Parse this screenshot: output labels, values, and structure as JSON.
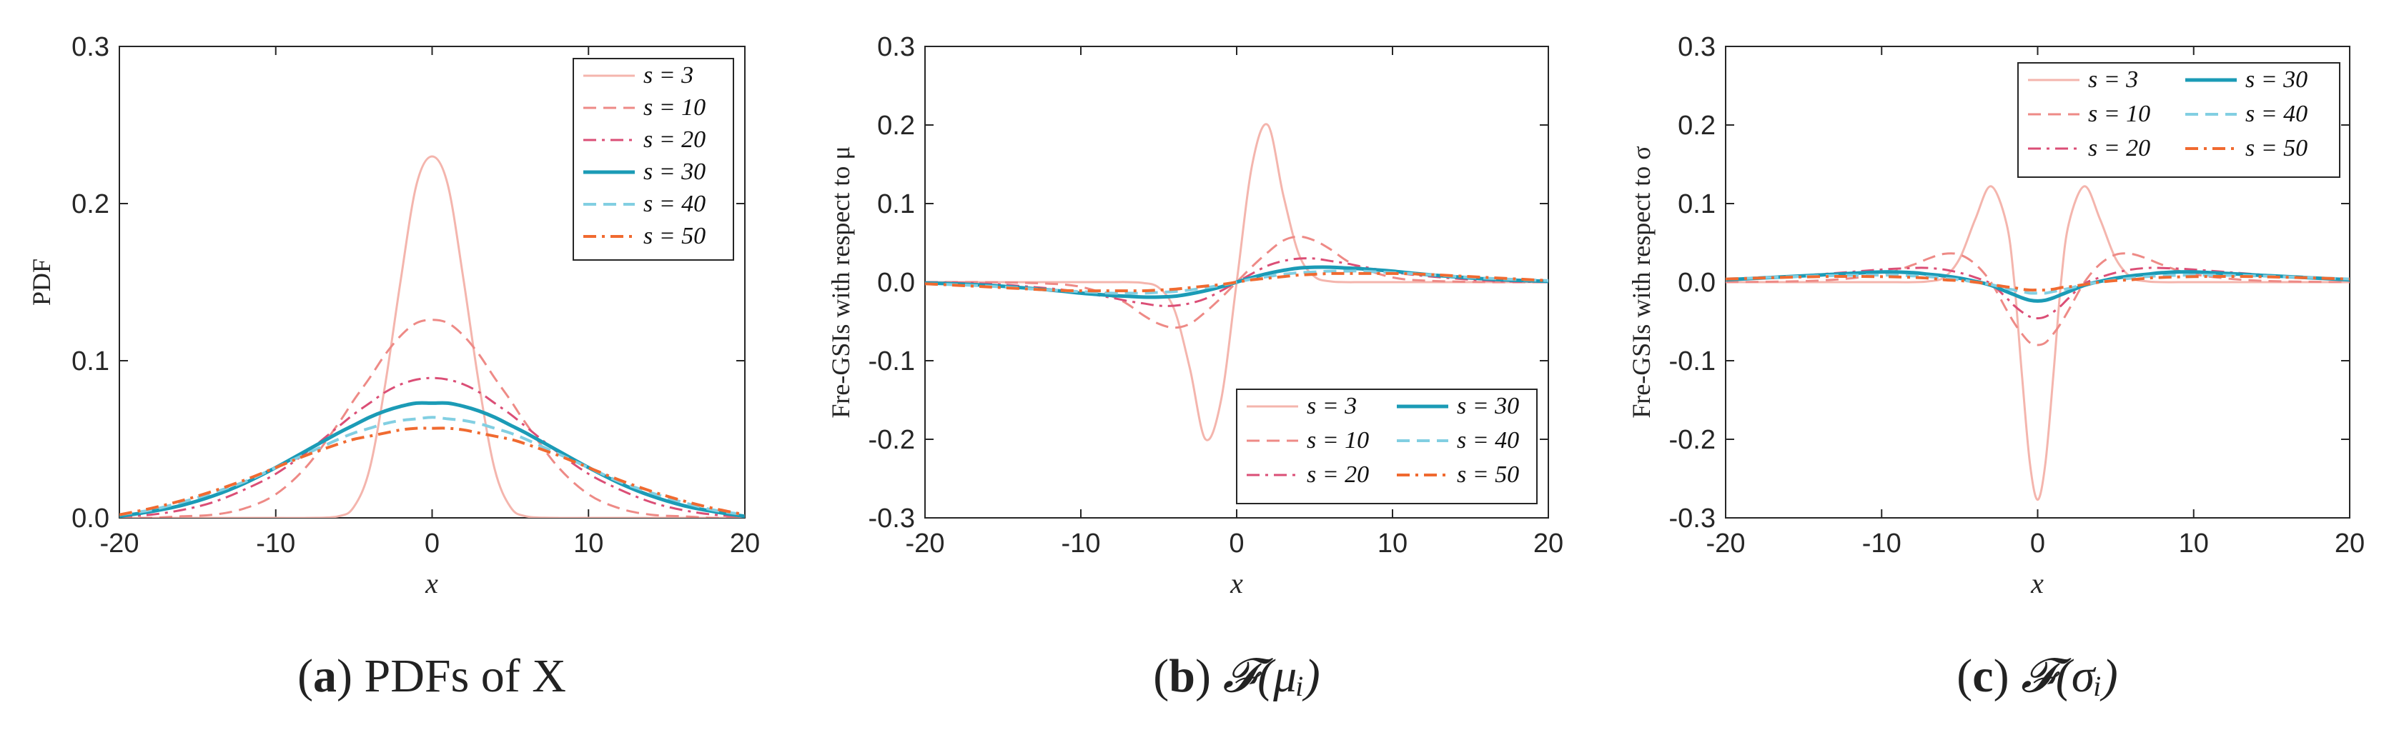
{
  "chart_data": [
    {
      "type": "line",
      "panel_label": "a",
      "caption": "PDFs of X",
      "title": "",
      "xlabel": "x",
      "ylabel": "PDF",
      "xlim": [
        -20,
        20
      ],
      "ylim": [
        0,
        0.3
      ],
      "xticks": [
        "-20",
        "-10",
        "0",
        "10",
        "20"
      ],
      "yticks": [
        "0.0",
        "0.1",
        "0.2",
        "0.3"
      ],
      "legend_position": "top-right",
      "legend_columns": 1,
      "grid": false,
      "x": [
        -20,
        -18,
        -16,
        -14,
        -12,
        -10,
        -8,
        -6,
        -5,
        -4,
        -3,
        -2,
        -1,
        0,
        1,
        2,
        3,
        4,
        5,
        6,
        8,
        10,
        12,
        14,
        16,
        18,
        20
      ],
      "series": [
        {
          "name": "s = 3",
          "values": [
            0,
            0,
            0,
            0,
            0,
            0,
            0,
            0.001,
            0.007,
            0.031,
            0.085,
            0.152,
            0.212,
            0.23,
            0.212,
            0.152,
            0.085,
            0.031,
            0.007,
            0.001,
            0,
            0,
            0,
            0,
            0,
            0,
            0
          ]
        },
        {
          "name": "s = 10",
          "values": [
            0,
            0,
            0.001,
            0.002,
            0.006,
            0.015,
            0.033,
            0.06,
            0.075,
            0.089,
            0.104,
            0.116,
            0.124,
            0.126,
            0.124,
            0.116,
            0.104,
            0.089,
            0.075,
            0.06,
            0.033,
            0.015,
            0.006,
            0.002,
            0.001,
            0,
            0
          ]
        },
        {
          "name": "s = 20",
          "values": [
            0.001,
            0.002,
            0.005,
            0.01,
            0.018,
            0.028,
            0.042,
            0.058,
            0.066,
            0.073,
            0.08,
            0.085,
            0.088,
            0.089,
            0.088,
            0.085,
            0.08,
            0.073,
            0.066,
            0.058,
            0.042,
            0.028,
            0.018,
            0.01,
            0.005,
            0.002,
            0.001
          ]
        },
        {
          "name": "s = 30",
          "values": [
            0.001,
            0.004,
            0.008,
            0.014,
            0.022,
            0.032,
            0.043,
            0.054,
            0.059,
            0.064,
            0.068,
            0.071,
            0.073,
            0.073,
            0.073,
            0.071,
            0.068,
            0.064,
            0.059,
            0.054,
            0.043,
            0.032,
            0.022,
            0.014,
            0.008,
            0.004,
            0.001
          ]
        },
        {
          "name": "s = 40",
          "values": [
            0.002,
            0.005,
            0.01,
            0.016,
            0.023,
            0.032,
            0.041,
            0.05,
            0.054,
            0.057,
            0.06,
            0.062,
            0.063,
            0.064,
            0.063,
            0.062,
            0.06,
            0.057,
            0.054,
            0.05,
            0.041,
            0.032,
            0.023,
            0.016,
            0.01,
            0.005,
            0.002
          ]
        },
        {
          "name": "s = 50",
          "values": [
            0.002,
            0.006,
            0.011,
            0.017,
            0.024,
            0.032,
            0.04,
            0.047,
            0.05,
            0.052,
            0.054,
            0.056,
            0.057,
            0.057,
            0.057,
            0.056,
            0.054,
            0.052,
            0.05,
            0.047,
            0.04,
            0.032,
            0.024,
            0.017,
            0.011,
            0.006,
            0.002
          ]
        }
      ]
    },
    {
      "type": "line",
      "panel_label": "b",
      "caption": "𝓕(μᵢ)",
      "title": "",
      "xlabel": "x",
      "ylabel": "Fre-GSIs with respect to μ",
      "xlim": [
        -20,
        20
      ],
      "ylim": [
        -0.3,
        0.3
      ],
      "xticks": [
        "-20",
        "-10",
        "0",
        "10",
        "20"
      ],
      "yticks": [
        "-0.3",
        "-0.2",
        "-0.1",
        "0.0",
        "0.1",
        "0.2",
        "0.3"
      ],
      "legend_position": "bottom-right",
      "legend_columns": 2,
      "grid": false,
      "x": [
        -20,
        -16,
        -12,
        -10,
        -8,
        -7,
        -6,
        -5,
        -4,
        -3,
        -2,
        -1,
        0,
        1,
        2,
        3,
        4,
        5,
        6,
        7,
        8,
        10,
        12,
        16,
        20
      ],
      "series": [
        {
          "name": "s = 3",
          "values": [
            0,
            0,
            0,
            0,
            0,
            0,
            -0.001,
            -0.007,
            -0.035,
            -0.11,
            -0.2,
            -0.15,
            0,
            0.15,
            0.2,
            0.11,
            0.035,
            0.007,
            0.001,
            0,
            0,
            0,
            0,
            0,
            0
          ]
        },
        {
          "name": "s = 10",
          "values": [
            0,
            0,
            -0.002,
            -0.006,
            -0.018,
            -0.028,
            -0.042,
            -0.053,
            -0.058,
            -0.053,
            -0.038,
            -0.02,
            0,
            0.02,
            0.038,
            0.053,
            0.058,
            0.053,
            0.042,
            0.028,
            0.018,
            0.006,
            0.002,
            0,
            0
          ]
        },
        {
          "name": "s = 20",
          "values": [
            0,
            -0.002,
            -0.008,
            -0.013,
            -0.02,
            -0.024,
            -0.027,
            -0.03,
            -0.03,
            -0.027,
            -0.021,
            -0.011,
            0,
            0.011,
            0.021,
            0.027,
            0.03,
            0.03,
            0.027,
            0.024,
            0.02,
            0.013,
            0.008,
            0.002,
            0
          ]
        },
        {
          "name": "s = 30",
          "values": [
            -0.001,
            -0.004,
            -0.01,
            -0.014,
            -0.017,
            -0.018,
            -0.019,
            -0.019,
            -0.018,
            -0.015,
            -0.011,
            -0.006,
            0,
            0.006,
            0.011,
            0.015,
            0.018,
            0.019,
            0.019,
            0.018,
            0.017,
            0.014,
            0.01,
            0.004,
            0.001
          ]
        },
        {
          "name": "s = 40",
          "values": [
            -0.002,
            -0.005,
            -0.01,
            -0.012,
            -0.014,
            -0.014,
            -0.014,
            -0.013,
            -0.012,
            -0.01,
            -0.007,
            -0.004,
            0,
            0.004,
            0.007,
            0.01,
            0.012,
            0.013,
            0.014,
            0.014,
            0.014,
            0.012,
            0.01,
            0.005,
            0.002
          ]
        },
        {
          "name": "s = 50",
          "values": [
            -0.002,
            -0.006,
            -0.01,
            -0.011,
            -0.011,
            -0.011,
            -0.011,
            -0.01,
            -0.009,
            -0.007,
            -0.005,
            -0.003,
            0,
            0.003,
            0.005,
            0.007,
            0.009,
            0.01,
            0.011,
            0.011,
            0.011,
            0.011,
            0.01,
            0.006,
            0.002
          ]
        }
      ]
    },
    {
      "type": "line",
      "panel_label": "c",
      "caption": "𝓕(σᵢ)",
      "title": "",
      "xlabel": "x",
      "ylabel": "Fre-GSIs with respect to σ",
      "xlim": [
        -20,
        20
      ],
      "ylim": [
        -0.3,
        0.3
      ],
      "xticks": [
        "-20",
        "-10",
        "0",
        "10",
        "20"
      ],
      "yticks": [
        "-0.3",
        "-0.2",
        "-0.1",
        "0.0",
        "0.1",
        "0.2",
        "0.3"
      ],
      "legend_position": "top-right",
      "legend_columns": 2,
      "grid": false,
      "x": [
        -20,
        -14,
        -10,
        -8,
        -7,
        -6,
        -5,
        -4,
        -3,
        -2,
        -1.5,
        -1,
        -0.5,
        0,
        0.5,
        1,
        1.5,
        2,
        3,
        4,
        5,
        6,
        7,
        8,
        10,
        14,
        20
      ],
      "series": [
        {
          "name": "s = 3",
          "values": [
            0,
            0,
            0,
            0,
            0.001,
            0.006,
            0.03,
            0.08,
            0.122,
            0.075,
            0.0,
            -0.12,
            -0.23,
            -0.277,
            -0.23,
            -0.12,
            0.0,
            0.075,
            0.122,
            0.08,
            0.03,
            0.006,
            0.001,
            0,
            0,
            0,
            0
          ]
        },
        {
          "name": "s = 10",
          "values": [
            0,
            0.002,
            0.01,
            0.022,
            0.03,
            0.036,
            0.035,
            0.023,
            0.0,
            -0.035,
            -0.052,
            -0.066,
            -0.077,
            -0.08,
            -0.077,
            -0.066,
            -0.052,
            -0.035,
            0.0,
            0.023,
            0.035,
            0.036,
            0.03,
            0.022,
            0.01,
            0.002,
            0
          ]
        },
        {
          "name": "s = 20",
          "values": [
            0.002,
            0.01,
            0.016,
            0.018,
            0.018,
            0.016,
            0.012,
            0.006,
            -0.002,
            -0.02,
            -0.03,
            -0.038,
            -0.044,
            -0.046,
            -0.044,
            -0.038,
            -0.03,
            -0.02,
            -0.002,
            0.006,
            0.012,
            0.016,
            0.018,
            0.018,
            0.016,
            0.01,
            0.002
          ]
        },
        {
          "name": "s = 30",
          "values": [
            0.003,
            0.009,
            0.013,
            0.012,
            0.01,
            0.008,
            0.005,
            0.001,
            -0.004,
            -0.012,
            -0.016,
            -0.02,
            -0.023,
            -0.024,
            -0.023,
            -0.02,
            -0.016,
            -0.012,
            -0.004,
            0.001,
            0.005,
            0.008,
            0.01,
            0.012,
            0.013,
            0.009,
            0.003
          ]
        },
        {
          "name": "s = 40",
          "values": [
            0.004,
            0.008,
            0.009,
            0.008,
            0.007,
            0.005,
            0.003,
            0.0,
            -0.003,
            -0.008,
            -0.01,
            -0.012,
            -0.014,
            -0.014,
            -0.014,
            -0.012,
            -0.01,
            -0.008,
            -0.003,
            0.0,
            0.003,
            0.005,
            0.007,
            0.008,
            0.009,
            0.008,
            0.004
          ]
        },
        {
          "name": "s = 50",
          "values": [
            0.004,
            0.007,
            0.007,
            0.006,
            0.005,
            0.003,
            0.002,
            0.0,
            -0.003,
            -0.006,
            -0.007,
            -0.009,
            -0.01,
            -0.01,
            -0.01,
            -0.009,
            -0.007,
            -0.006,
            -0.003,
            0.0,
            0.002,
            0.003,
            0.005,
            0.006,
            0.007,
            0.007,
            0.004
          ]
        }
      ]
    }
  ],
  "series_colors": [
    "#f4b5ad",
    "#ee8a86",
    "#db4e76",
    "#1b9bb6",
    "#82cfe2",
    "#f06a30"
  ],
  "series_dashes": [
    "solid",
    "dashed",
    "dashdot",
    "solid",
    "dashed",
    "dashdot"
  ]
}
